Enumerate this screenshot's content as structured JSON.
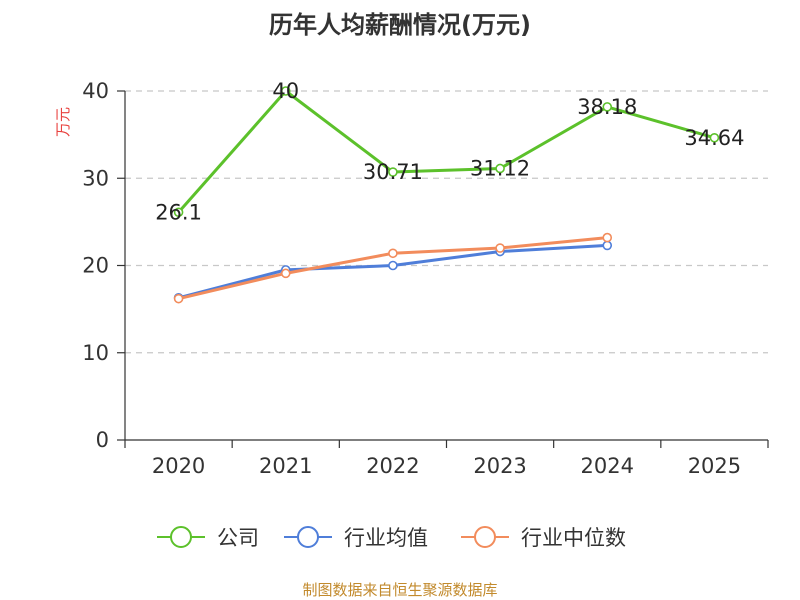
{
  "chart_data": {
    "type": "line",
    "title": "历年人均薪酬情况(万元)",
    "ylabel": "万元",
    "xlabel": "",
    "categories": [
      "2020",
      "2021",
      "2022",
      "2023",
      "2024",
      "2025"
    ],
    "ylim": [
      0,
      40
    ],
    "yticks": [
      0,
      10,
      20,
      30,
      40
    ],
    "grid": true,
    "legend_position": "bottom",
    "series": [
      {
        "name": "公司",
        "color": "#5cc12b",
        "values": [
          26.1,
          40,
          30.71,
          31.12,
          38.18,
          34.64
        ],
        "labels": [
          "26.1",
          "40",
          "30.71",
          "31.12",
          "38.18",
          "34.64"
        ]
      },
      {
        "name": "行业均值",
        "color": "#4f7ed9",
        "values": [
          16.3,
          19.5,
          20.0,
          21.6,
          22.3,
          null
        ]
      },
      {
        "name": "行业中位数",
        "color": "#f28c5c",
        "values": [
          16.2,
          19.1,
          21.4,
          22.0,
          23.2,
          null
        ]
      }
    ],
    "source": "制图数据来自恒生聚源数据库"
  }
}
